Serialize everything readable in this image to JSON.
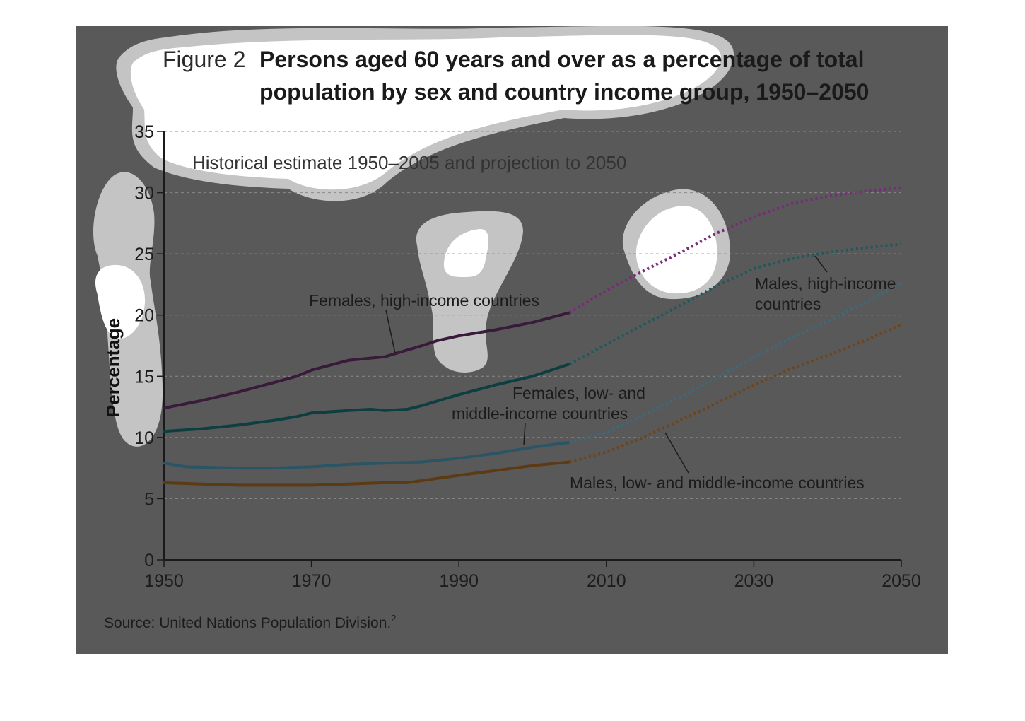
{
  "figure": {
    "number": "Figure 2",
    "title_line1": "Persons aged 60 years and over as a percentage of total",
    "title_line2": "population by sex and country income group, 1950–2050",
    "subtitle": "Historical estimate 1950–2005 and projection to 2050",
    "source": "Source: United Nations Population Division.",
    "source_sup": "2"
  },
  "annotations": {
    "females_high": "Females, high-income countries",
    "males_high_1": "Males, high-income",
    "males_high_2": "countries",
    "females_low_1": "Females, low- and",
    "females_low_2": "middle-income countries",
    "males_low": "Males, low- and middle-income countries"
  },
  "chart_data": {
    "type": "line",
    "title": "Persons aged 60 years and over as a percentage of total population by sex and country income group, 1950–2050",
    "subtitle": "Historical estimate 1950–2005 and projection to 2050",
    "xlabel": "",
    "ylabel": "Percentage",
    "xlim": [
      1950,
      2050
    ],
    "ylim": [
      0,
      35
    ],
    "xticks": [
      1950,
      1970,
      1990,
      2010,
      2030,
      2050
    ],
    "yticks": [
      0,
      5,
      10,
      15,
      20,
      25,
      30,
      35
    ],
    "grid": true,
    "projection_from": 2005,
    "series": [
      {
        "name": "Females, high-income countries",
        "color": "#3a1a3a",
        "projection_color": "#7a2a7a",
        "points": [
          [
            1950,
            12.4
          ],
          [
            1955,
            13.0
          ],
          [
            1960,
            13.7
          ],
          [
            1965,
            14.5
          ],
          [
            1968,
            15.0
          ],
          [
            1970,
            15.5
          ],
          [
            1975,
            16.3
          ],
          [
            1980,
            16.6
          ],
          [
            1985,
            17.5
          ],
          [
            1987,
            17.9
          ],
          [
            1990,
            18.3
          ],
          [
            1995,
            18.8
          ],
          [
            2000,
            19.4
          ],
          [
            2005,
            20.2
          ],
          [
            2010,
            22.0
          ],
          [
            2015,
            23.6
          ],
          [
            2020,
            25.1
          ],
          [
            2025,
            26.7
          ],
          [
            2030,
            28.0
          ],
          [
            2035,
            29.1
          ],
          [
            2040,
            29.7
          ],
          [
            2045,
            30.1
          ],
          [
            2050,
            30.4
          ]
        ]
      },
      {
        "name": "Males, high-income countries",
        "color": "#0d3e40",
        "projection_color": "#1e5a5c",
        "points": [
          [
            1950,
            10.5
          ],
          [
            1955,
            10.7
          ],
          [
            1960,
            11.0
          ],
          [
            1965,
            11.4
          ],
          [
            1968,
            11.7
          ],
          [
            1970,
            12.0
          ],
          [
            1975,
            12.2
          ],
          [
            1978,
            12.3
          ],
          [
            1980,
            12.2
          ],
          [
            1983,
            12.3
          ],
          [
            1985,
            12.6
          ],
          [
            1990,
            13.5
          ],
          [
            1995,
            14.3
          ],
          [
            2000,
            15.0
          ],
          [
            2005,
            16.0
          ],
          [
            2010,
            17.6
          ],
          [
            2015,
            19.2
          ],
          [
            2020,
            20.8
          ],
          [
            2025,
            22.4
          ],
          [
            2030,
            23.8
          ],
          [
            2035,
            24.6
          ],
          [
            2040,
            25.1
          ],
          [
            2045,
            25.5
          ],
          [
            2050,
            25.8
          ]
        ]
      },
      {
        "name": "Females, low- and middle-income countries",
        "color": "#2b5566",
        "projection_color": "#3a6a80",
        "points": [
          [
            1950,
            7.9
          ],
          [
            1953,
            7.6
          ],
          [
            1960,
            7.5
          ],
          [
            1965,
            7.5
          ],
          [
            1970,
            7.6
          ],
          [
            1975,
            7.8
          ],
          [
            1980,
            7.9
          ],
          [
            1985,
            8.0
          ],
          [
            1990,
            8.3
          ],
          [
            1995,
            8.7
          ],
          [
            2000,
            9.2
          ],
          [
            2005,
            9.6
          ],
          [
            2010,
            10.4
          ],
          [
            2015,
            11.8
          ],
          [
            2020,
            13.3
          ],
          [
            2025,
            14.9
          ],
          [
            2030,
            16.5
          ],
          [
            2035,
            18.1
          ],
          [
            2040,
            19.5
          ],
          [
            2045,
            21.0
          ],
          [
            2050,
            22.6
          ]
        ]
      },
      {
        "name": "Males, low- and middle-income countries",
        "color": "#5c3a14",
        "projection_color": "#6e4418",
        "points": [
          [
            1950,
            6.3
          ],
          [
            1955,
            6.2
          ],
          [
            1960,
            6.1
          ],
          [
            1965,
            6.1
          ],
          [
            1970,
            6.1
          ],
          [
            1975,
            6.2
          ],
          [
            1980,
            6.3
          ],
          [
            1983,
            6.3
          ],
          [
            1990,
            6.9
          ],
          [
            1995,
            7.3
          ],
          [
            2000,
            7.7
          ],
          [
            2005,
            8.0
          ],
          [
            2010,
            8.8
          ],
          [
            2015,
            10.0
          ],
          [
            2020,
            11.4
          ],
          [
            2025,
            12.8
          ],
          [
            2030,
            14.3
          ],
          [
            2035,
            15.6
          ],
          [
            2040,
            16.7
          ],
          [
            2045,
            17.9
          ],
          [
            2050,
            19.2
          ]
        ]
      }
    ]
  }
}
